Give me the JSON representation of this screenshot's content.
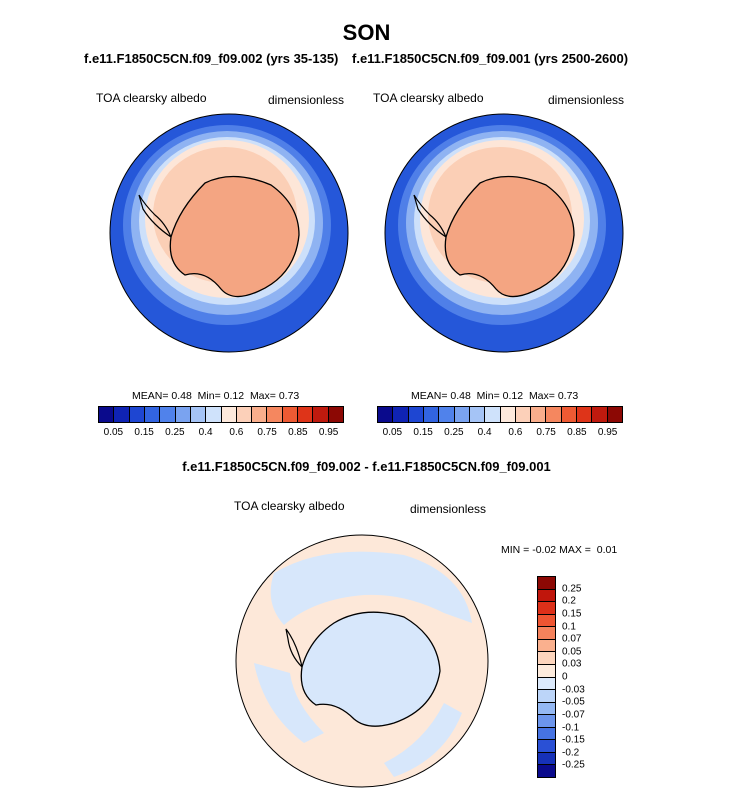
{
  "season": "SON",
  "panels": [
    {
      "title": "f.e11.F1850C5CN.f09_f09.002 (yrs 35-135)",
      "variable": "TOA clearsky albedo",
      "units": "dimensionless",
      "mean_label": "MEAN=",
      "mean": "0.48",
      "min_label": "Min=",
      "min": "0.12",
      "max_label": "Max=",
      "max": "0.73"
    },
    {
      "title": "f.e11.F1850C5CN.f09_f09.001 (yrs 2500-2600)",
      "variable": "TOA clearsky albedo",
      "units": "dimensionless",
      "mean_label": "MEAN=",
      "mean": "0.48",
      "min_label": "Min=",
      "min": "0.12",
      "max_label": "Max=",
      "max": "0.73"
    }
  ],
  "diff": {
    "title": "f.e11.F1850C5CN.f09_f09.002 - f.e11.F1850C5CN.f09_f09.001",
    "variable": "TOA clearsky albedo",
    "units": "dimensionless",
    "min_label": "MIN =",
    "min": "-0.02",
    "max_label": "MAX =",
    "max": "0.01"
  },
  "colorbar_main": {
    "colors": [
      "#0a0a8c",
      "#0f23b4",
      "#1e46d2",
      "#3264e1",
      "#5082eb",
      "#7aa3f0",
      "#a5c4f6",
      "#cfe2fb",
      "#fde9dc",
      "#fcd0b9",
      "#f9ae8c",
      "#f5875f",
      "#ee5a33",
      "#de3419",
      "#bf1a0e",
      "#8c0804"
    ],
    "labels": [
      "0.05",
      "0.15",
      "0.25",
      "0.4",
      "0.6",
      "0.75",
      "0.85",
      "0.95"
    ]
  },
  "colorbar_diff": {
    "colors": [
      "#8c0804",
      "#c0160c",
      "#dd3019",
      "#ee5532",
      "#f5825c",
      "#fab08e",
      "#fdd5bd",
      "#fdebdd",
      "#dceafc",
      "#bcd5f9",
      "#94b8f3",
      "#6c95ec",
      "#4673e3",
      "#2a50d5",
      "#1631b8",
      "#0a0a8c"
    ],
    "labels": [
      "0.25",
      "0.2",
      "0.15",
      "0.1",
      "0.07",
      "0.05",
      "0.03",
      "0",
      "-0.03",
      "-0.05",
      "-0.07",
      "-0.1",
      "-0.15",
      "-0.2",
      "-0.25"
    ]
  }
}
